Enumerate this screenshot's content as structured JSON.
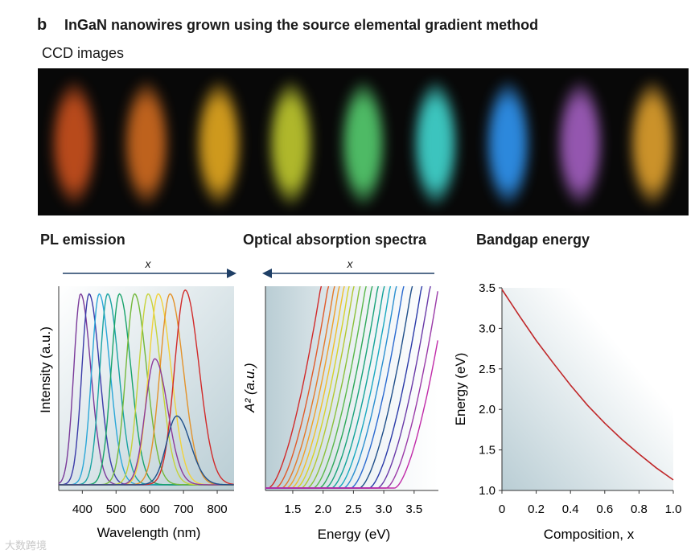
{
  "header": {
    "panel_letter": "b",
    "title": "InGaN nanowires grown using the source elemental gradient method"
  },
  "ccd": {
    "label": "CCD images",
    "tiles": [
      {
        "color": "#c24e1d"
      },
      {
        "color": "#c8671f"
      },
      {
        "color": "#d9a11f"
      },
      {
        "color": "#b8c12d"
      },
      {
        "color": "#52c46a"
      },
      {
        "color": "#3fcfc8"
      },
      {
        "color": "#2e8fe8"
      },
      {
        "color": "#9c5bb8"
      },
      {
        "color": "#d69a2c"
      }
    ]
  },
  "watermark": "大数跨境",
  "chart_data": [
    {
      "type": "line",
      "title": "PL emission",
      "arrow_label": "x",
      "xlabel": "Wavelength (nm)",
      "ylabel": "Intensity (a.u.)",
      "xlim": [
        330,
        850
      ],
      "ylim": [
        0,
        1.07
      ],
      "xticks": [
        "400",
        "500",
        "600",
        "700",
        "800"
      ],
      "xtick_values": [
        400,
        500,
        600,
        700,
        800
      ],
      "series": [
        {
          "color": "#7a3a9a",
          "peak": 395,
          "height": 1.0
        },
        {
          "color": "#3a3aa8",
          "peak": 420,
          "height": 1.0
        },
        {
          "color": "#2aa7d8",
          "peak": 450,
          "height": 1.0
        },
        {
          "color": "#1aa3a3",
          "peak": 475,
          "height": 1.0
        },
        {
          "color": "#18a36a",
          "peak": 510,
          "height": 1.0
        },
        {
          "color": "#72b83a",
          "peak": 555,
          "height": 1.0
        },
        {
          "color": "#c6d23a",
          "peak": 595,
          "height": 1.0
        },
        {
          "color": "#f2d23a",
          "peak": 625,
          "height": 1.0
        },
        {
          "color": "#e3922a",
          "peak": 660,
          "height": 1.0
        },
        {
          "color": "#d12a2a",
          "peak": 705,
          "height": 1.02
        },
        {
          "color": "#8e3a9a",
          "peak": 615,
          "height": 0.66
        },
        {
          "color": "#1f4f8a",
          "peak": 680,
          "height": 0.36
        }
      ]
    },
    {
      "type": "line",
      "title": "Optical absorption spectra",
      "arrow_label": "x",
      "xlabel": "Energy (eV)",
      "ylabel": "A² (a.u.)",
      "xlim": [
        1.05,
        3.9
      ],
      "ylim": [
        0,
        1.0
      ],
      "xticks": [
        "1.5",
        "2.0",
        "2.5",
        "3.0",
        "3.5"
      ],
      "xtick_values": [
        1.5,
        2.0,
        2.5,
        3.0,
        3.5
      ],
      "series": [
        {
          "color": "#d12a2a",
          "onset": 1.2
        },
        {
          "color": "#e05a2a",
          "onset": 1.32
        },
        {
          "color": "#e37a2a",
          "onset": 1.42
        },
        {
          "color": "#eea02a",
          "onset": 1.5
        },
        {
          "color": "#f0c02a",
          "onset": 1.58
        },
        {
          "color": "#d8d22a",
          "onset": 1.66
        },
        {
          "color": "#b4c830",
          "onset": 1.74
        },
        {
          "color": "#8ac03a",
          "onset": 1.84
        },
        {
          "color": "#5ab84a",
          "onset": 1.94
        },
        {
          "color": "#2ea85a",
          "onset": 2.04
        },
        {
          "color": "#1aa37a",
          "onset": 2.14
        },
        {
          "color": "#14a39a",
          "onset": 2.24
        },
        {
          "color": "#1aa8c0",
          "onset": 2.34
        },
        {
          "color": "#2a8fd0",
          "onset": 2.44
        },
        {
          "color": "#2a6ad0",
          "onset": 2.56
        },
        {
          "color": "#1f4f8a",
          "onset": 2.7
        },
        {
          "color": "#2a3aa8",
          "onset": 2.86
        },
        {
          "color": "#6a3aa8",
          "onset": 3.0
        },
        {
          "color": "#9a3aa8",
          "onset": 3.14
        },
        {
          "color": "#c02aa8",
          "onset": 3.28
        }
      ]
    },
    {
      "type": "line",
      "title": "Bandgap energy",
      "xlabel": "Composition, x",
      "ylabel": "Energy (eV)",
      "xlim": [
        0,
        1.0
      ],
      "ylim": [
        1.0,
        3.5
      ],
      "xticks": [
        "0",
        "0.2",
        "0.4",
        "0.6",
        "0.8",
        "1.0"
      ],
      "xtick_values": [
        0,
        0.2,
        0.4,
        0.6,
        0.8,
        1.0
      ],
      "yticks": [
        "1.0",
        "1.5",
        "2.0",
        "2.5",
        "3.0",
        "3.5"
      ],
      "ytick_values": [
        1.0,
        1.5,
        2.0,
        2.5,
        3.0,
        3.5
      ],
      "series": [
        {
          "color": "#c0282a",
          "x": [
            0,
            0.1,
            0.2,
            0.3,
            0.4,
            0.5,
            0.6,
            0.7,
            0.8,
            0.9,
            1.0
          ],
          "y": [
            3.48,
            3.16,
            2.85,
            2.57,
            2.3,
            2.05,
            1.83,
            1.63,
            1.45,
            1.28,
            1.13
          ]
        }
      ]
    }
  ]
}
